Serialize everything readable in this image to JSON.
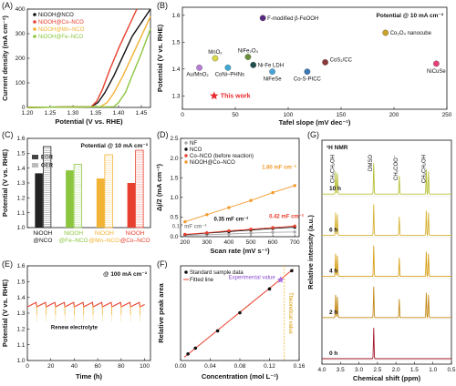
{
  "chart_data": [
    {
      "panel": "(A)",
      "type": "line",
      "xlabel": "Potential (V vs. RHE)",
      "ylabel": "Current density (mA cm⁻²)",
      "xlim": [
        1.2,
        1.47
      ],
      "ylim": [
        0,
        400
      ],
      "xticks": [
        "1.20",
        "1.25",
        "1.30",
        "1.35",
        "1.40",
        "1.45"
      ],
      "yticks": [
        "0",
        "100",
        "200",
        "300",
        "400"
      ],
      "legend_position": "top-left",
      "series": [
        {
          "name": "NiOOH@NCO",
          "color": "#111111",
          "x": [
            1.2,
            1.34,
            1.355,
            1.37,
            1.39,
            1.41,
            1.43,
            1.47
          ],
          "y": [
            0,
            3,
            20,
            60,
            130,
            210,
            290,
            400
          ]
        },
        {
          "name": "NiOOH@Co–NCO",
          "color": "#e8402e",
          "x": [
            1.2,
            1.34,
            1.352,
            1.365,
            1.38,
            1.4,
            1.42,
            1.44
          ],
          "y": [
            0,
            3,
            25,
            75,
            150,
            240,
            320,
            400
          ]
        },
        {
          "name": "NiOOH@Mn–NCO",
          "color": "#f2b233",
          "x": [
            1.2,
            1.36,
            1.375,
            1.39,
            1.41,
            1.43,
            1.45,
            1.47
          ],
          "y": [
            0,
            3,
            20,
            60,
            130,
            210,
            290,
            370
          ]
        },
        {
          "name": "NiOOH@Fe–NCO",
          "color": "#8cc63f",
          "x": [
            1.2,
            1.39,
            1.4,
            1.415,
            1.43,
            1.45,
            1.46,
            1.47
          ],
          "y": [
            0,
            3,
            20,
            60,
            130,
            220,
            270,
            320
          ]
        }
      ]
    },
    {
      "panel": "(B)",
      "type": "scatter",
      "annotation": "Potential @ 10 mA cm⁻²",
      "xlabel": "Tafel slope (mV dec⁻¹)",
      "ylabel": "Potential (V vs. RHE)",
      "xlim": [
        0,
        250
      ],
      "ylim": [
        1.25,
        1.63
      ],
      "xticks": [
        "0",
        "50",
        "100",
        "150",
        "200",
        "250"
      ],
      "yticks": [
        "1.3",
        "1.4",
        "1.5",
        "1.6"
      ],
      "points": [
        {
          "label": "F-modified β-FeOOH",
          "x": 76,
          "y": 1.59,
          "color": "#5a2a82"
        },
        {
          "label": "Co₃O₄ nanocube",
          "x": 192,
          "y": 1.535,
          "color": "#c9a227"
        },
        {
          "label": "MnO₂",
          "x": 31,
          "y": 1.44,
          "color": "#d9d84a"
        },
        {
          "label": "NiFe₂O₄",
          "x": 62,
          "y": 1.445,
          "color": "#6b8f3a"
        },
        {
          "label": "Au/MnO₂",
          "x": 16,
          "y": 1.405,
          "color": "#b77fd4"
        },
        {
          "label": "CoNi–PHNs",
          "x": 43,
          "y": 1.405,
          "color": "#3fa9d6"
        },
        {
          "label": "Ni-Fe LDH",
          "x": 67,
          "y": 1.415,
          "color": "#1f4f4f"
        },
        {
          "label": "CoS₂/CC",
          "x": 135,
          "y": 1.425,
          "color": "#8b3a3a"
        },
        {
          "label": "NiCuSe",
          "x": 240,
          "y": 1.42,
          "color": "#e83f7a"
        },
        {
          "label": "NiFeSe",
          "x": 85,
          "y": 1.39,
          "color": "#4aa3d8"
        },
        {
          "label": "Co-S-PICC",
          "x": 118,
          "y": 1.39,
          "color": "#3b78b5"
        },
        {
          "label": "This work",
          "x": 30,
          "y": 1.3,
          "color": "#e8272b"
        }
      ]
    },
    {
      "panel": "(C)",
      "type": "bar",
      "annotation": "Potential @ 10 mA cm⁻²",
      "ylabel": "Potential (V vs. RHE)",
      "ylim": [
        1.0,
        1.6
      ],
      "yticks": [
        "1.0",
        "1.1",
        "1.2",
        "1.3",
        "1.4",
        "1.5",
        "1.6"
      ],
      "categories": [
        "NiOOH @NCO",
        "NiOOH @Fe–NCO",
        "NiOOH @Mn–NCO",
        "NiOOH @Co–NCO"
      ],
      "series": [
        {
          "name": "EOR",
          "values": [
            1.365,
            1.385,
            1.33,
            1.3
          ]
        },
        {
          "name": "OER",
          "values": [
            1.545,
            1.425,
            1.49,
            1.52
          ]
        }
      ],
      "colors": [
        "#222222",
        "#8cc63f",
        "#f2b233",
        "#e8402e"
      ],
      "legend": [
        "EOR",
        "OER"
      ]
    },
    {
      "panel": "(D)",
      "type": "scatter",
      "xlabel": "Scan rate (mV s⁻¹)",
      "ylabel": "Δj/2 (mA cm⁻²)",
      "xlim": [
        180,
        720
      ],
      "ylim": [
        0,
        2.5
      ],
      "xticks": [
        "200",
        "300",
        "400",
        "500",
        "600",
        "700"
      ],
      "yticks": [
        "0.0",
        "0.5",
        "1.0",
        "1.5",
        "2.0",
        "2.5"
      ],
      "x": [
        200,
        300,
        400,
        500,
        600,
        700
      ],
      "series": [
        {
          "name": "NF",
          "color": "#aaaaaa",
          "values": [
            0.03,
            0.05,
            0.07,
            0.09,
            0.11,
            0.12
          ]
        },
        {
          "name": "NCO",
          "color": "#111111",
          "values": [
            0.05,
            0.09,
            0.13,
            0.17,
            0.21,
            0.24
          ]
        },
        {
          "name": "Co–NCO (before reaction)",
          "color": "#e8402e",
          "values": [
            0.06,
            0.1,
            0.15,
            0.19,
            0.23,
            0.27
          ]
        },
        {
          "name": "NiOOH@Co–NCO",
          "color": "#f29a2e",
          "values": [
            0.38,
            0.56,
            0.74,
            0.92,
            1.12,
            1.3
          ]
        }
      ],
      "annotations": [
        "1.80 mF cm⁻²",
        "0.42 mF cm⁻²",
        "0.35 mF cm⁻²",
        "0.17 mF cm⁻²"
      ]
    },
    {
      "panel": "(E)",
      "type": "line",
      "annotation": "@ 100 mA cm⁻²",
      "xlabel": "Time (h)",
      "ylabel": "Potential (V vs. RHE)",
      "xlim": [
        0,
        105
      ],
      "ylim": [
        1.0,
        1.6
      ],
      "xticks": [
        "0",
        "20",
        "40",
        "60",
        "80",
        "100"
      ],
      "yticks": [
        "1.0",
        "1.1",
        "1.2",
        "1.3",
        "1.4",
        "1.5",
        "1.6"
      ],
      "baseline": 1.35,
      "note": "Renew electrolyte"
    },
    {
      "panel": "(F)",
      "type": "scatter",
      "xlabel": "Concentration (mol L⁻¹)",
      "ylabel": "Relative peak area",
      "xlim": [
        0,
        0.16
      ],
      "xticks": [
        "0.00",
        "0.04",
        "0.08",
        "0.12",
        "0.16"
      ],
      "legend": [
        "Standard sample data",
        "Fitted line"
      ],
      "x": [
        0.01,
        0.02,
        0.05,
        0.08,
        0.12,
        0.15
      ],
      "values": [
        0.8,
        1.5,
        3.6,
        5.8,
        8.7,
        10.9
      ],
      "ylim": [
        0,
        11.5
      ],
      "experimental": {
        "label": "Experimental value",
        "x": 0.135,
        "y": 9.8
      },
      "theoretical_label": "Theoretical value",
      "theoretical_x": 0.14
    },
    {
      "panel": "(G)",
      "type": "line",
      "title": "¹H NMR",
      "xlabel": "Chemical shift (ppm)",
      "ylabel": "Relative intensity (a.u.)",
      "xlim": [
        4.0,
        0.5
      ],
      "xticks": [
        "4.0",
        "3.5",
        "3.0",
        "2.5",
        "2.0",
        "1.5",
        "1.0",
        "0.5"
      ],
      "series_labels": [
        "0 h",
        "2 h",
        "4 h",
        "6 h",
        "10 h"
      ],
      "peak_labels": [
        "CH₃CH₂OH",
        "DMSO",
        "CH₃COO⁻",
        "CH₃CH₂OH"
      ]
    }
  ]
}
